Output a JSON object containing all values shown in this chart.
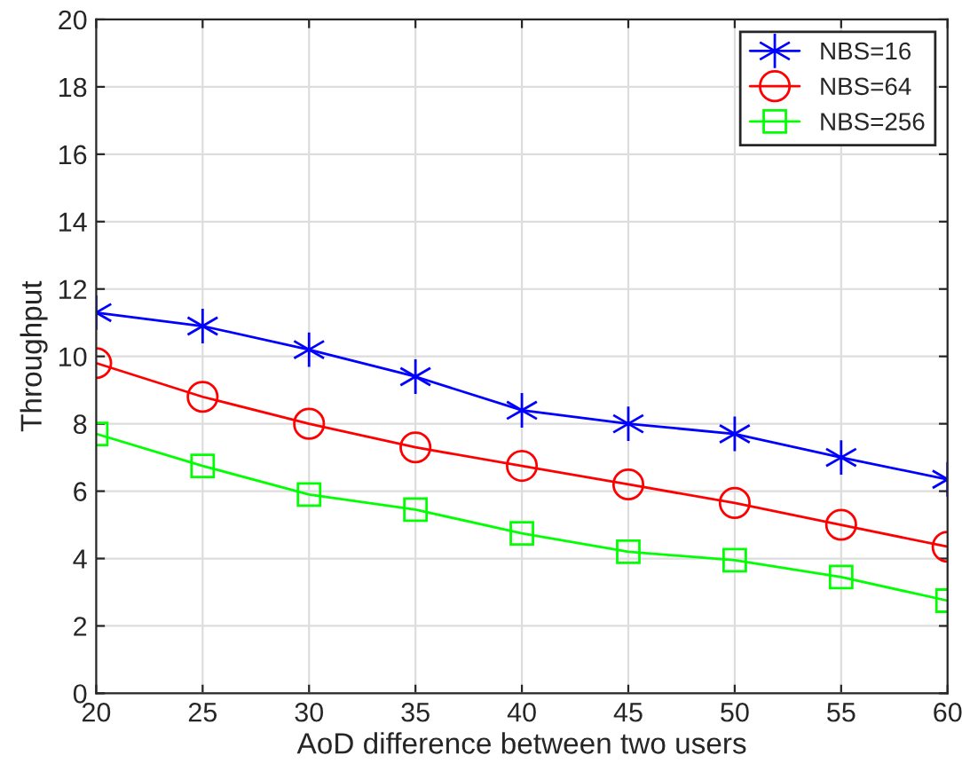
{
  "chart_data": {
    "type": "line",
    "xlabel": "AoD difference between two users",
    "ylabel": "Throughput",
    "x": [
      20,
      25,
      30,
      35,
      40,
      45,
      50,
      55,
      60
    ],
    "series": [
      {
        "name": "NBS=16",
        "color": "#0000ff",
        "marker": "cross",
        "values": [
          11.3,
          10.9,
          10.2,
          9.4,
          8.4,
          8.0,
          7.7,
          7.0,
          6.35
        ]
      },
      {
        "name": "NBS=64",
        "color": "#ff0000",
        "marker": "circle",
        "values": [
          9.8,
          8.8,
          8.0,
          7.3,
          6.75,
          6.2,
          5.65,
          5.0,
          4.35
        ]
      },
      {
        "name": "NBS=256",
        "color": "#00ff00",
        "marker": "square",
        "values": [
          7.7,
          6.75,
          5.9,
          5.45,
          4.75,
          4.2,
          3.95,
          3.45,
          2.75
        ]
      }
    ],
    "xlim": [
      20,
      60
    ],
    "xticks": [
      20,
      25,
      30,
      35,
      40,
      45,
      50,
      55,
      60
    ],
    "ylim": [
      0,
      20
    ],
    "yticks": [
      0,
      2,
      4,
      6,
      8,
      10,
      12,
      14,
      16,
      18,
      20
    ],
    "grid": true,
    "legend": "top right",
    "line_style": "solid"
  }
}
